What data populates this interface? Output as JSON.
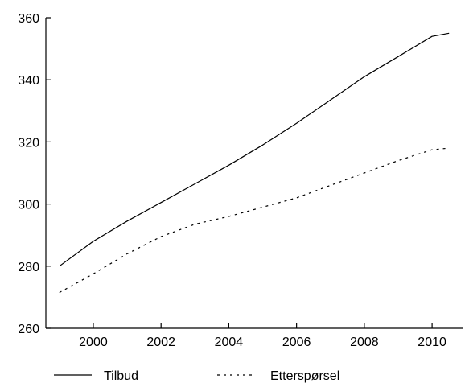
{
  "chart_data": {
    "type": "line",
    "title": "",
    "xlabel": "",
    "ylabel": "",
    "xlim": [
      1998.6,
      2010.9
    ],
    "ylim": [
      260,
      360
    ],
    "x_ticks": [
      2000,
      2002,
      2004,
      2006,
      2008,
      2010
    ],
    "y_ticks": [
      260,
      280,
      300,
      320,
      340,
      360
    ],
    "grid": false,
    "legend_position": "bottom",
    "series": [
      {
        "name": "Tilbud",
        "style": "solid",
        "x": [
          1999,
          2000,
          2001,
          2002,
          2003,
          2004,
          2005,
          2006,
          2007,
          2008,
          2009,
          2010,
          2010.5
        ],
        "y": [
          280,
          288,
          294.5,
          300.5,
          306.5,
          312.5,
          319,
          326,
          333.5,
          341,
          347.5,
          354,
          355
        ]
      },
      {
        "name": "Etterspørsel",
        "style": "dotted",
        "x": [
          1999,
          2000,
          2001,
          2002,
          2003,
          2004,
          2005,
          2006,
          2007,
          2008,
          2009,
          2010,
          2010.5
        ],
        "y": [
          271.5,
          277.5,
          284,
          289.5,
          293.5,
          296,
          299,
          302,
          306,
          310,
          314,
          317.5,
          318
        ]
      }
    ]
  }
}
